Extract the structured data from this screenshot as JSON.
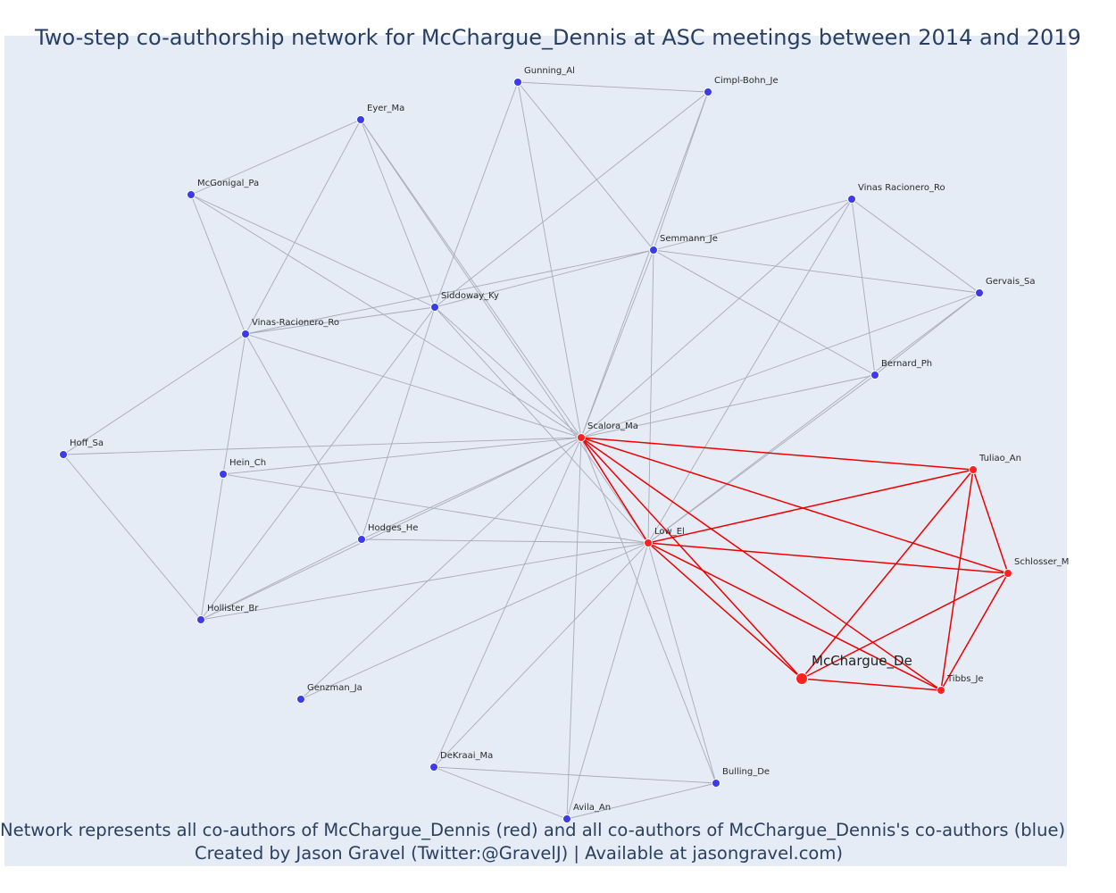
{
  "title": "Two-step co-authorship network for McChargue_Dennis at ASC meetings between 2014 and 2019",
  "caption": {
    "line1": "Network represents all co-authors of McChargue_Dennis (red) and all co-authors of McChargue_Dennis's co-authors (blue)",
    "line2": "Created by Jason Gravel (Twitter:@GravelJ) | Available at jasongravel.com)"
  },
  "colors": {
    "background": "#e5ecf6",
    "coauthor_node": "#ff2020",
    "second_step_node": "#3b3bea",
    "coauthor_edge": "#ee0000",
    "second_step_edge": "#aaaab8"
  },
  "chart_data": {
    "type": "network",
    "focus": "McChargue_De",
    "nodes": [
      {
        "id": "Gunning_Al",
        "group": "second_step"
      },
      {
        "id": "Cimpl-Bohn_Je",
        "group": "second_step"
      },
      {
        "id": "Eyer_Ma",
        "group": "second_step"
      },
      {
        "id": "McGonigal_Pa",
        "group": "second_step"
      },
      {
        "id": "Vinas Racionero_Ro",
        "group": "second_step"
      },
      {
        "id": "Semmann_Je",
        "group": "second_step"
      },
      {
        "id": "Gervais_Sa",
        "group": "second_step"
      },
      {
        "id": "Siddoway_Ky",
        "group": "second_step"
      },
      {
        "id": "Vinas-Racionero_Ro",
        "group": "second_step"
      },
      {
        "id": "Bernard_Ph",
        "group": "second_step"
      },
      {
        "id": "Scalora_Ma",
        "group": "coauthor"
      },
      {
        "id": "Hoff_Sa",
        "group": "second_step"
      },
      {
        "id": "Tuliao_An",
        "group": "coauthor"
      },
      {
        "id": "Hein_Ch",
        "group": "second_step"
      },
      {
        "id": "Hodges_He",
        "group": "second_step"
      },
      {
        "id": "Low_El",
        "group": "coauthor"
      },
      {
        "id": "Schlosser_M",
        "group": "coauthor"
      },
      {
        "id": "Hollister_Br",
        "group": "second_step"
      },
      {
        "id": "McChargue_De",
        "group": "focus"
      },
      {
        "id": "Tibbs_Je",
        "group": "coauthor"
      },
      {
        "id": "Genzman_Ja",
        "group": "second_step"
      },
      {
        "id": "DeKraai_Ma",
        "group": "second_step"
      },
      {
        "id": "Bulling_De",
        "group": "second_step"
      },
      {
        "id": "Avila_An",
        "group": "second_step"
      }
    ],
    "edges": [
      [
        "McChargue_De",
        "Scalora_Ma"
      ],
      [
        "McChargue_De",
        "Low_El"
      ],
      [
        "McChargue_De",
        "Tuliao_An"
      ],
      [
        "McChargue_De",
        "Schlosser_M"
      ],
      [
        "McChargue_De",
        "Tibbs_Je"
      ],
      [
        "Scalora_Ma",
        "Low_El"
      ],
      [
        "Scalora_Ma",
        "Tuliao_An"
      ],
      [
        "Scalora_Ma",
        "Schlosser_M"
      ],
      [
        "Scalora_Ma",
        "Tibbs_Je"
      ],
      [
        "Low_El",
        "Tuliao_An"
      ],
      [
        "Low_El",
        "Schlosser_M"
      ],
      [
        "Low_El",
        "Tibbs_Je"
      ],
      [
        "Tuliao_An",
        "Schlosser_M"
      ],
      [
        "Tuliao_An",
        "Tibbs_Je"
      ],
      [
        "Schlosser_M",
        "Tibbs_Je"
      ],
      [
        "Gunning_Al",
        "Cimpl-Bohn_Je"
      ],
      [
        "Gunning_Al",
        "Semmann_Je"
      ],
      [
        "Gunning_Al",
        "Scalora_Ma"
      ],
      [
        "Gunning_Al",
        "Siddoway_Ky"
      ],
      [
        "Cimpl-Bohn_Je",
        "Semmann_Je"
      ],
      [
        "Cimpl-Bohn_Je",
        "Scalora_Ma"
      ],
      [
        "Cimpl-Bohn_Je",
        "Siddoway_Ky"
      ],
      [
        "Eyer_Ma",
        "McGonigal_Pa"
      ],
      [
        "Eyer_Ma",
        "Vinas-Racionero_Ro"
      ],
      [
        "Eyer_Ma",
        "Siddoway_Ky"
      ],
      [
        "Eyer_Ma",
        "Scalora_Ma"
      ],
      [
        "Eyer_Ma",
        "Low_El"
      ],
      [
        "McGonigal_Pa",
        "Vinas-Racionero_Ro"
      ],
      [
        "McGonigal_Pa",
        "Siddoway_Ky"
      ],
      [
        "McGonigal_Pa",
        "Scalora_Ma"
      ],
      [
        "Vinas Racionero_Ro",
        "Semmann_Je"
      ],
      [
        "Vinas Racionero_Ro",
        "Gervais_Sa"
      ],
      [
        "Vinas Racionero_Ro",
        "Bernard_Ph"
      ],
      [
        "Vinas Racionero_Ro",
        "Scalora_Ma"
      ],
      [
        "Vinas Racionero_Ro",
        "Low_El"
      ],
      [
        "Semmann_Je",
        "Siddoway_Ky"
      ],
      [
        "Semmann_Je",
        "Vinas-Racionero_Ro"
      ],
      [
        "Semmann_Je",
        "Gervais_Sa"
      ],
      [
        "Semmann_Je",
        "Bernard_Ph"
      ],
      [
        "Semmann_Je",
        "Scalora_Ma"
      ],
      [
        "Semmann_Je",
        "Low_El"
      ],
      [
        "Gervais_Sa",
        "Bernard_Ph"
      ],
      [
        "Gervais_Sa",
        "Scalora_Ma"
      ],
      [
        "Gervais_Sa",
        "Low_El"
      ],
      [
        "Siddoway_Ky",
        "Vinas-Racionero_Ro"
      ],
      [
        "Siddoway_Ky",
        "Scalora_Ma"
      ],
      [
        "Siddoway_Ky",
        "Low_El"
      ],
      [
        "Siddoway_Ky",
        "Hodges_He"
      ],
      [
        "Siddoway_Ky",
        "Hollister_Br"
      ],
      [
        "Vinas-Racionero_Ro",
        "Scalora_Ma"
      ],
      [
        "Vinas-Racionero_Ro",
        "Hoff_Sa"
      ],
      [
        "Vinas-Racionero_Ro",
        "Hein_Ch"
      ],
      [
        "Vinas-Racionero_Ro",
        "Hodges_He"
      ],
      [
        "Bernard_Ph",
        "Scalora_Ma"
      ],
      [
        "Bernard_Ph",
        "Low_El"
      ],
      [
        "Hoff_Sa",
        "Scalora_Ma"
      ],
      [
        "Hoff_Sa",
        "Hollister_Br"
      ],
      [
        "Hein_Ch",
        "Scalora_Ma"
      ],
      [
        "Hein_Ch",
        "Low_El"
      ],
      [
        "Hein_Ch",
        "Hollister_Br"
      ],
      [
        "Hodges_He",
        "Scalora_Ma"
      ],
      [
        "Hodges_He",
        "Low_El"
      ],
      [
        "Hodges_He",
        "Hollister_Br"
      ],
      [
        "Hollister_Br",
        "Scalora_Ma"
      ],
      [
        "Hollister_Br",
        "Low_El"
      ],
      [
        "Genzman_Ja",
        "Scalora_Ma"
      ],
      [
        "Genzman_Ja",
        "Low_El"
      ],
      [
        "DeKraai_Ma",
        "Scalora_Ma"
      ],
      [
        "DeKraai_Ma",
        "Low_El"
      ],
      [
        "DeKraai_Ma",
        "Avila_An"
      ],
      [
        "DeKraai_Ma",
        "Bulling_De"
      ],
      [
        "Bulling_De",
        "Scalora_Ma"
      ],
      [
        "Bulling_De",
        "Low_El"
      ],
      [
        "Bulling_De",
        "Avila_An"
      ],
      [
        "Avila_An",
        "Scalora_Ma"
      ],
      [
        "Avila_An",
        "Low_El"
      ]
    ]
  }
}
